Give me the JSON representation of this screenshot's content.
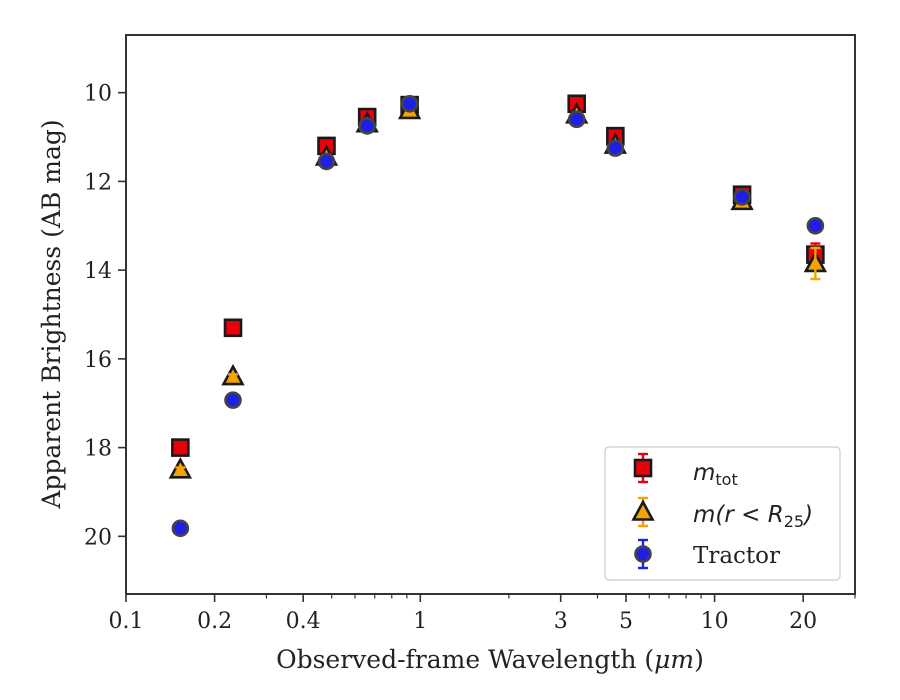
{
  "chart_data": {
    "type": "scatter",
    "xlabel_text": "Observed-frame Wavelength (",
    "xlabel_unit": "μm",
    "xlabel_close": ")",
    "ylabel": "Apparent Brightness (AB mag)",
    "x_scale": "log",
    "xlim": [
      0.1,
      30
    ],
    "ylim": [
      21.3,
      8.7
    ],
    "y_inverted": true,
    "x_ticks": [
      {
        "value": 0.1,
        "label": "0.1"
      },
      {
        "value": 0.2,
        "label": "0.2"
      },
      {
        "value": 0.4,
        "label": "0.4"
      },
      {
        "value": 1,
        "label": "1"
      },
      {
        "value": 3,
        "label": "3"
      },
      {
        "value": 5,
        "label": "5"
      },
      {
        "value": 10,
        "label": "10"
      },
      {
        "value": 20,
        "label": "20"
      }
    ],
    "x_minor_ticks": [
      0.3,
      0.5,
      0.6,
      0.7,
      0.8,
      0.9,
      2,
      4,
      6,
      7,
      8,
      9,
      30
    ],
    "y_ticks": [
      {
        "value": 10,
        "label": "10"
      },
      {
        "value": 12,
        "label": "12"
      },
      {
        "value": 14,
        "label": "14"
      },
      {
        "value": 16,
        "label": "16"
      },
      {
        "value": 18,
        "label": "18"
      },
      {
        "value": 20,
        "label": "20"
      }
    ],
    "grid": false,
    "legend_position": "lower-right",
    "series": [
      {
        "name": "m_tot",
        "legend_main": "m",
        "legend_sub": "tot",
        "marker": "square",
        "color": "#e8000b",
        "edge_color": "#1a1a1a",
        "errbar_color": "#e8000b",
        "points": [
          {
            "x": 0.153,
            "y": 18.0,
            "err": 0.05
          },
          {
            "x": 0.231,
            "y": 15.3,
            "err": 0.05
          },
          {
            "x": 0.48,
            "y": 11.2,
            "err": 0.05
          },
          {
            "x": 0.66,
            "y": 10.55,
            "err": 0.05
          },
          {
            "x": 0.92,
            "y": 10.28,
            "err": 0.05
          },
          {
            "x": 3.4,
            "y": 10.25,
            "err": 0.05
          },
          {
            "x": 4.6,
            "y": 10.98,
            "err": 0.05
          },
          {
            "x": 12.4,
            "y": 12.3,
            "err": 0.05
          },
          {
            "x": 22.0,
            "y": 13.65,
            "err": 0.25
          }
        ]
      },
      {
        "name": "m(r<R_25)",
        "legend_main": "m(r < R",
        "legend_sub": "25",
        "legend_close": ")",
        "marker": "triangle",
        "color": "#f5a300",
        "edge_color": "#1a1a1a",
        "errbar_color": "#f5a300",
        "points": [
          {
            "x": 0.153,
            "y": 18.5,
            "err": 0.05
          },
          {
            "x": 0.231,
            "y": 16.4,
            "err": 0.05
          },
          {
            "x": 0.48,
            "y": 11.45,
            "err": 0.05
          },
          {
            "x": 0.66,
            "y": 10.7,
            "err": 0.05
          },
          {
            "x": 0.92,
            "y": 10.4,
            "err": 0.05
          },
          {
            "x": 3.4,
            "y": 10.5,
            "err": 0.05
          },
          {
            "x": 4.6,
            "y": 11.18,
            "err": 0.05
          },
          {
            "x": 12.4,
            "y": 12.45,
            "err": 0.05
          },
          {
            "x": 22.0,
            "y": 13.85,
            "err": 0.35
          }
        ]
      },
      {
        "name": "Tractor",
        "legend_main": "Tractor",
        "marker": "circle",
        "color": "#1f1fe6",
        "edge_color": "#444444",
        "errbar_color": "#1f1fe6",
        "points": [
          {
            "x": 0.153,
            "y": 19.82,
            "err": 0.05
          },
          {
            "x": 0.231,
            "y": 16.93,
            "err": 0.05
          },
          {
            "x": 0.48,
            "y": 11.55,
            "err": 0.05
          },
          {
            "x": 0.66,
            "y": 10.75,
            "err": 0.05
          },
          {
            "x": 0.92,
            "y": 10.25,
            "err": 0.05
          },
          {
            "x": 3.4,
            "y": 10.6,
            "err": 0.05
          },
          {
            "x": 4.6,
            "y": 11.25,
            "err": 0.05
          },
          {
            "x": 12.4,
            "y": 12.35,
            "err": 0.05
          },
          {
            "x": 22.0,
            "y": 13.0,
            "err": 0.05
          }
        ]
      }
    ]
  }
}
